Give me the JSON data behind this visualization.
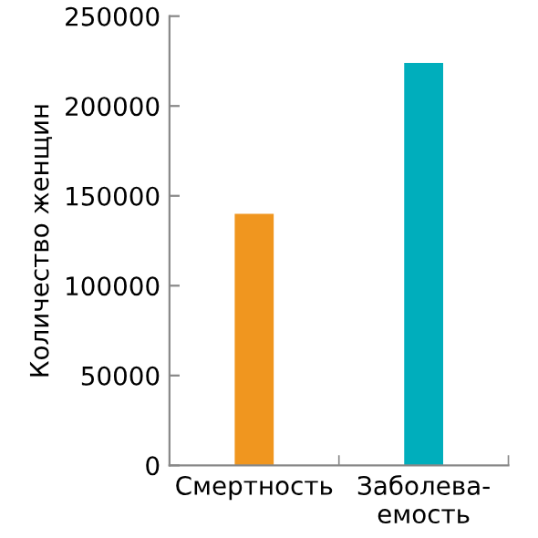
{
  "chart_data": {
    "type": "bar",
    "ylabel": "Количество женщин",
    "categories": [
      "Смертность",
      "Заболева-\nемость"
    ],
    "values": [
      140000,
      224000
    ],
    "colors": [
      "#f0961f",
      "#00aebc"
    ],
    "ylim": [
      0,
      250000
    ],
    "yticks": [
      0,
      50000,
      100000,
      150000,
      200000,
      250000
    ],
    "grid": false,
    "legend": false
  }
}
